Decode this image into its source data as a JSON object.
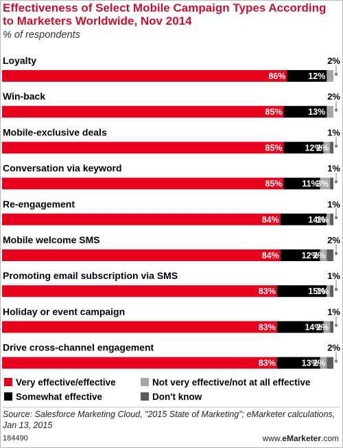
{
  "header": {
    "title": "Effectiveness of Select Mobile Campaign Types According to Marketers Worldwide, Nov 2014",
    "subtitle": "% of respondents"
  },
  "colors": {
    "very_effective": "#e8001c",
    "somewhat_effective": "#000000",
    "not_very_effective": "#a6a6a6",
    "dont_know": "#5b5b5b",
    "title": "#c8102e"
  },
  "chart_data": {
    "type": "bar",
    "orientation": "horizontal",
    "stacked": true,
    "percent_stacked": true,
    "categories": [
      "Loyalty",
      "Win-back",
      "Mobile-exclusive deals",
      "Conversation via keyword",
      "Re-engagement",
      "Mobile welcome SMS",
      "Promoting email subscription via SMS",
      "Holiday or event campaign",
      "Drive cross-channel engagement"
    ],
    "series": [
      {
        "name": "Very effective/effective",
        "color": "#e8001c",
        "values": [
          86,
          85,
          85,
          85,
          84,
          84,
          83,
          83,
          83
        ]
      },
      {
        "name": "Somewhat effective",
        "color": "#000000",
        "values": [
          12,
          13,
          12,
          11,
          14,
          12,
          15,
          14,
          13
        ]
      },
      {
        "name": "Not very effective/not at all effective",
        "color": "#a6a6a6",
        "values": [
          2,
          2,
          2,
          3,
          1,
          2,
          1,
          2,
          2
        ]
      },
      {
        "name": "Don't know",
        "color": "#5b5b5b",
        "values": [
          0,
          0,
          1,
          1,
          1,
          2,
          1,
          1,
          2
        ]
      }
    ],
    "data_labels": [
      [
        "86%",
        "12%",
        "",
        "",
        "2%"
      ],
      [
        "85%",
        "13%",
        "",
        "",
        "2%"
      ],
      [
        "85%",
        "12%",
        "2%",
        "",
        "1%"
      ],
      [
        "85%",
        "11%",
        "3%",
        "",
        "1%"
      ],
      [
        "84%",
        "14%",
        "1%",
        "",
        "1%"
      ],
      [
        "84%",
        "12%",
        "2%",
        "",
        "2%"
      ],
      [
        "83%",
        "15%",
        "1%",
        "",
        "1%"
      ],
      [
        "83%",
        "14%",
        "2%",
        "",
        "1%"
      ],
      [
        "83%",
        "13%",
        "2%",
        "",
        "2%"
      ]
    ],
    "xlim": [
      0,
      100
    ],
    "legend_position": "bottom"
  },
  "footer": {
    "source": "Source: Salesforce Marketing Cloud, \"2015 State of Marketing\"; eMarketer calculations, Jan 13, 2015",
    "chart_id": "184490",
    "brand_prefix": "www.",
    "brand_name": "eMarketer",
    "brand_suffix": ".com"
  }
}
